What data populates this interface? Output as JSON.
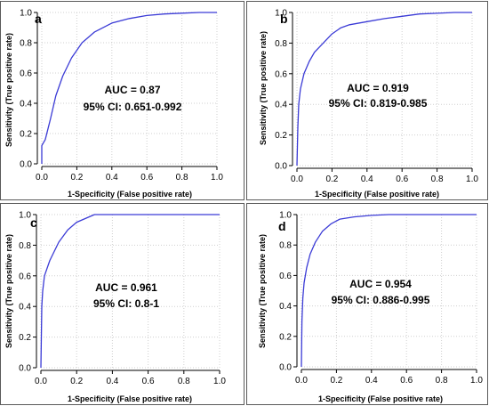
{
  "chart_data": [
    {
      "type": "line",
      "panel_label": "a",
      "xlabel": "1-Specificity (False positive rate)",
      "ylabel": "Sensitivity (True positive rate)",
      "xlim": [
        0,
        1
      ],
      "ylim": [
        0,
        1
      ],
      "xticks": [
        "0.0",
        "0.2",
        "0.4",
        "0.6",
        "0.8",
        "1.0"
      ],
      "yticks": [
        "0.0",
        "0.2",
        "0.4",
        "0.6",
        "0.8",
        "1.0"
      ],
      "grid": true,
      "auc_text": "AUC = 0.87",
      "ci_text": "95% CI: 0.651-0.992",
      "series": [
        {
          "color": "#3b3bd6",
          "x": [
            0,
            0,
            0.02,
            0.05,
            0.08,
            0.12,
            0.17,
            0.23,
            0.3,
            0.4,
            0.5,
            0.6,
            0.7,
            0.8,
            0.9,
            1.0
          ],
          "y": [
            0.0,
            0.12,
            0.16,
            0.3,
            0.45,
            0.58,
            0.7,
            0.8,
            0.87,
            0.93,
            0.96,
            0.98,
            0.99,
            0.995,
            1.0,
            1.0
          ]
        }
      ]
    },
    {
      "type": "line",
      "panel_label": "b",
      "xlabel": "1-Specificity (False positive rate)",
      "ylabel": "Sensitivity (True positive rate)",
      "xlim": [
        0,
        1
      ],
      "ylim": [
        0,
        1
      ],
      "xticks": [
        "0.0",
        "0.2",
        "0.4",
        "0.6",
        "0.8",
        "1.0"
      ],
      "yticks": [
        "0.0",
        "0.2",
        "0.4",
        "0.6",
        "0.8",
        "1.0"
      ],
      "grid": true,
      "auc_text": "AUC = 0.919",
      "ci_text": "95% CI: 0.819-0.985",
      "series": [
        {
          "color": "#3b3bd6",
          "x": [
            0,
            0.005,
            0.01,
            0.02,
            0.04,
            0.07,
            0.1,
            0.15,
            0.2,
            0.25,
            0.3,
            0.4,
            0.5,
            0.6,
            0.7,
            0.8,
            0.9,
            1.0
          ],
          "y": [
            0.0,
            0.25,
            0.4,
            0.5,
            0.6,
            0.68,
            0.74,
            0.8,
            0.86,
            0.9,
            0.92,
            0.94,
            0.96,
            0.975,
            0.99,
            0.995,
            1.0,
            1.0
          ]
        }
      ]
    },
    {
      "type": "line",
      "panel_label": "c",
      "xlabel": "1-Specificity (False positive rate)",
      "ylabel": "Sensitivity (True positive rate)",
      "xlim": [
        0,
        1
      ],
      "ylim": [
        0,
        1
      ],
      "xticks": [
        "0.0",
        "0.2",
        "0.4",
        "0.6",
        "0.8",
        "1.0"
      ],
      "yticks": [
        "0.0",
        "0.2",
        "0.4",
        "0.6",
        "0.8",
        "1.0"
      ],
      "grid": true,
      "auc_text": "AUC = 0.961",
      "ci_text": "95% CI: 0.8-1",
      "series": [
        {
          "color": "#3b3bd6",
          "x": [
            0,
            0.005,
            0.01,
            0.02,
            0.05,
            0.1,
            0.15,
            0.2,
            0.3,
            0.5,
            1.0
          ],
          "y": [
            0.0,
            0.4,
            0.5,
            0.6,
            0.7,
            0.82,
            0.9,
            0.95,
            1.0,
            1.0,
            1.0
          ]
        }
      ]
    },
    {
      "type": "line",
      "panel_label": "d",
      "xlabel": "1-Specificity (False positive rate)",
      "ylabel": "Sensitivity (True positive rate)",
      "xlim": [
        0,
        1
      ],
      "ylim": [
        0,
        1
      ],
      "xticks": [
        "0.0",
        "0.2",
        "0.4",
        "0.6",
        "0.8",
        "1.0"
      ],
      "yticks": [
        "0.0",
        "0.2",
        "0.4",
        "0.6",
        "0.8",
        "1.0"
      ],
      "grid": true,
      "auc_text": "AUC = 0.954",
      "ci_text": "95% CI: 0.886-0.995",
      "series": [
        {
          "color": "#3b3bd6",
          "x": [
            0,
            0.003,
            0.008,
            0.015,
            0.03,
            0.05,
            0.08,
            0.12,
            0.17,
            0.22,
            0.3,
            0.4,
            0.5,
            0.6,
            0.8,
            1.0
          ],
          "y": [
            0.0,
            0.3,
            0.45,
            0.55,
            0.65,
            0.74,
            0.82,
            0.89,
            0.94,
            0.97,
            0.985,
            0.995,
            1.0,
            1.0,
            1.0,
            1.0
          ]
        }
      ]
    }
  ]
}
